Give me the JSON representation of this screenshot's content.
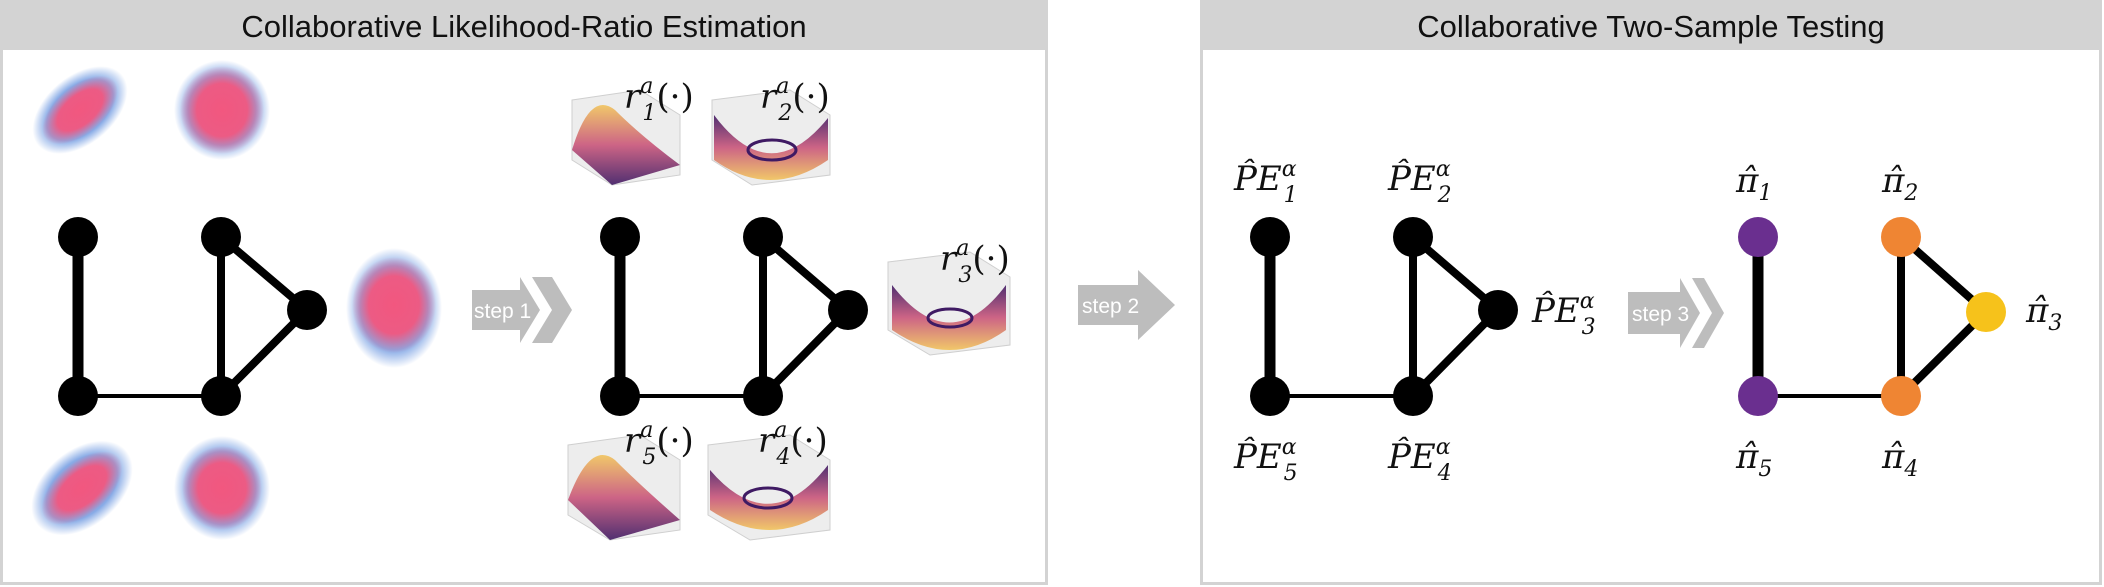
{
  "panels": {
    "left_title": "Collaborative Likelihood-Ratio Estimation",
    "right_title": "Collaborative Two-Sample Testing"
  },
  "steps": [
    "step 1",
    "step 2",
    "step 3"
  ],
  "ratio_labels": [
    {
      "base": "r",
      "sup": "a",
      "sub": "1",
      "arg": "(·)"
    },
    {
      "base": "r",
      "sup": "a",
      "sub": "2",
      "arg": "(·)"
    },
    {
      "base": "r",
      "sup": "a",
      "sub": "3",
      "arg": "(·)"
    },
    {
      "base": "r",
      "sup": "a",
      "sub": "5",
      "arg": "(·)"
    },
    {
      "base": "r",
      "sup": "a",
      "sub": "4",
      "arg": "(·)"
    }
  ],
  "pe_labels": [
    {
      "base": "P̂E",
      "sup": "α",
      "sub": "1"
    },
    {
      "base": "P̂E",
      "sup": "α",
      "sub": "2"
    },
    {
      "base": "P̂E",
      "sup": "α",
      "sub": "3"
    },
    {
      "base": "P̂E",
      "sup": "α",
      "sub": "5"
    },
    {
      "base": "P̂E",
      "sup": "α",
      "sub": "4"
    }
  ],
  "pi_labels": [
    {
      "base": "π̂",
      "sub": "1"
    },
    {
      "base": "π̂",
      "sub": "2"
    },
    {
      "base": "π̂",
      "sub": "3"
    },
    {
      "base": "π̂",
      "sub": "5"
    },
    {
      "base": "π̂",
      "sub": "4"
    }
  ],
  "colors": {
    "node": "#000000",
    "pink": "#f2577f",
    "blue": "#6a96e0",
    "arrow": "#bdbdbd",
    "pi_purple": "#6a2f8f",
    "pi_orange": "#ef8533",
    "pi_yellow": "#f6c21b",
    "surface_warm": "#f1c35b",
    "surface_mid": "#c9557a",
    "surface_dark": "#3f1a63"
  }
}
